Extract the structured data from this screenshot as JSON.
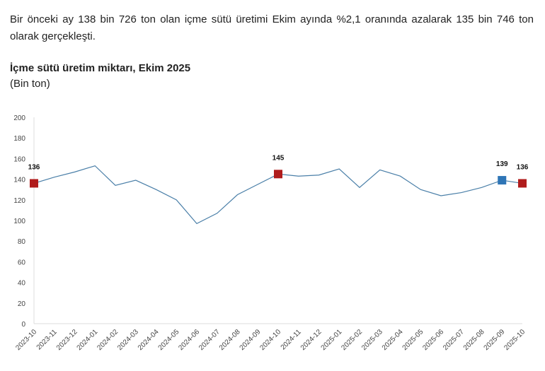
{
  "intro_text": "Bir önceki ay 138 bin 726 ton olan içme sütü üretimi Ekim ayında %2,1 oranında azalarak 135 bin 746 ton olarak gerçekleşti.",
  "chart_data": {
    "type": "line",
    "title": "İçme sütü üretim miktarı, Ekim 2025",
    "ylabel": "(Bin ton)",
    "xlabel": "",
    "ylim": [
      0,
      200
    ],
    "yticks": [
      0,
      20,
      40,
      60,
      80,
      100,
      120,
      140,
      160,
      180,
      200
    ],
    "grid": false,
    "categories": [
      "2023-10",
      "2023-11",
      "2023-12",
      "2024-01",
      "2024-02",
      "2024-03",
      "2024-04",
      "2024-05",
      "2024-06",
      "2024-07",
      "2024-08",
      "2024-09",
      "2024-10",
      "2024-11",
      "2024-12",
      "2025-01",
      "2025-02",
      "2025-03",
      "2025-04",
      "2025-05",
      "2025-06",
      "2025-07",
      "2025-08",
      "2025-09",
      "2025-10"
    ],
    "series": [
      {
        "name": "İçme sütü üretimi",
        "color": "#4a7fa8",
        "values": [
          136,
          142,
          147,
          153,
          134,
          139,
          130,
          120,
          97,
          107,
          125,
          135,
          145,
          143,
          144,
          150,
          132,
          149,
          143,
          130,
          124,
          127,
          132,
          139,
          136
        ]
      }
    ],
    "highlights": [
      {
        "index": 0,
        "label": "136",
        "color": "#b01c1c"
      },
      {
        "index": 12,
        "label": "145",
        "color": "#b01c1c"
      },
      {
        "index": 23,
        "label": "139",
        "color": "#2e75b6"
      },
      {
        "index": 24,
        "label": "136",
        "color": "#b01c1c"
      }
    ]
  }
}
